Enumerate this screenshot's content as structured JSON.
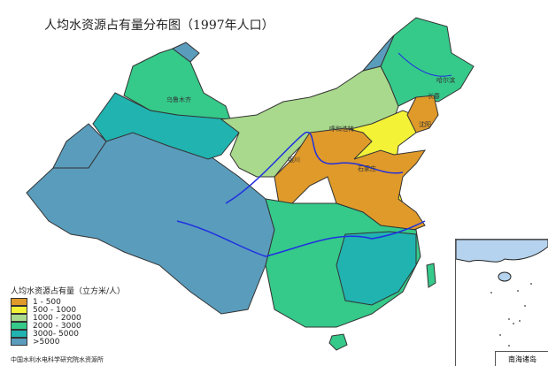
{
  "title": "人均水资源占有量分布图（1997年人口）",
  "legend": {
    "title": "人均水资源占有量（立方米/人）",
    "items": [
      {
        "label": "1 - 500",
        "color": "#df9a2a"
      },
      {
        "label": "500 - 1000",
        "color": "#f3f237"
      },
      {
        "label": "1000 - 2000",
        "color": "#a8d98c"
      },
      {
        "label": "2000 - 3000",
        "color": "#35c98a"
      },
      {
        "label": "3000- 5000",
        "color": "#20b3b0"
      },
      {
        "label": ">5000",
        "color": "#5a9cbc"
      }
    ]
  },
  "credit": "中国水利水电科学研究院水资源所",
  "inset_label": "南海诸岛",
  "cities": [
    "哈尔滨",
    "长春",
    "沈阳",
    "呼和浩特",
    "银川",
    "石家庄",
    "乌鲁木齐"
  ]
}
